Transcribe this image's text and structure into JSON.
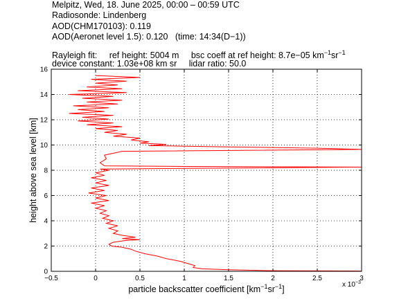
{
  "header": {
    "line1": "Melpitz, Wed, 18. June 2025, 00:00 – 00:59 UTC",
    "line2": "Radiosonde: Lindenberg",
    "line3": "AOD(CHM170103): 0.119",
    "line4": "AOD(Aeronet level 1.5): 0.120   (time: 14:34(D−1))",
    "rayleigh_label": "Rayleigh fit:",
    "ref_height": "ref height: 5004 m",
    "bsc_coeff_prefix": "bsc coeff at ref height: 8.7e−05 km",
    "bsc_coeff_unit_sup1": "−1",
    "bsc_coeff_unit_mid": "sr",
    "bsc_coeff_unit_sup2": "−1",
    "device_constant": "device constant: 1.03e+08 km sr",
    "lidar_ratio": "lidar ratio: 50.0"
  },
  "chart_data": {
    "type": "line",
    "xlabel_main": "particle backscatter coefficient [km",
    "xlabel_sup1": "−1",
    "xlabel_mid": "sr",
    "xlabel_sup2": "−1",
    "xlabel_end": "]",
    "ylabel": "height above sea level [km]",
    "x_multiplier_base": "x 10",
    "x_multiplier_exp": "−3",
    "xlim": [
      -0.5,
      3
    ],
    "ylim": [
      0,
      16
    ],
    "xticks": [
      "−0.5",
      "0",
      "0.5",
      "1",
      "1.5",
      "2",
      "2.5",
      "3"
    ],
    "yticks": [
      "0",
      "2",
      "4",
      "6",
      "8",
      "10",
      "12",
      "14",
      "16"
    ],
    "grid": true,
    "line_color": "#ff0000",
    "series": [
      {
        "points": [
          [
            3.0,
            0.02
          ],
          [
            2.0,
            0.05
          ],
          [
            1.5,
            0.12
          ],
          [
            1.2,
            0.2
          ],
          [
            1.1,
            0.3
          ],
          [
            1.12,
            0.45
          ],
          [
            1.05,
            0.6
          ],
          [
            0.95,
            0.8
          ],
          [
            0.8,
            1.0
          ],
          [
            0.7,
            1.2
          ],
          [
            0.55,
            1.4
          ],
          [
            0.45,
            1.6
          ],
          [
            0.4,
            1.75
          ],
          [
            0.3,
            1.9
          ],
          [
            0.18,
            2.0
          ],
          [
            0.15,
            2.15
          ],
          [
            0.2,
            2.3
          ],
          [
            0.35,
            2.45
          ],
          [
            0.5,
            2.5
          ],
          [
            0.3,
            2.6
          ],
          [
            0.45,
            2.7
          ],
          [
            0.3,
            2.85
          ],
          [
            0.2,
            3.0
          ],
          [
            0.25,
            3.2
          ],
          [
            0.15,
            3.4
          ],
          [
            0.25,
            3.6
          ],
          [
            0.12,
            3.8
          ],
          [
            0.2,
            4.0
          ],
          [
            0.08,
            4.2
          ],
          [
            0.15,
            4.4
          ],
          [
            0.05,
            4.6
          ],
          [
            0.12,
            4.8
          ],
          [
            0.0,
            5.0
          ],
          [
            0.1,
            5.2
          ],
          [
            -0.05,
            5.4
          ],
          [
            0.15,
            5.6
          ],
          [
            0.0,
            5.8
          ],
          [
            0.12,
            6.0
          ],
          [
            -0.08,
            6.2
          ],
          [
            0.1,
            6.4
          ],
          [
            -0.05,
            6.6
          ],
          [
            0.15,
            6.8
          ],
          [
            0.0,
            7.0
          ],
          [
            0.12,
            7.2
          ],
          [
            -0.05,
            7.4
          ],
          [
            0.1,
            7.6
          ],
          [
            0.0,
            7.8
          ],
          [
            0.15,
            8.0
          ],
          [
            0.05,
            8.1
          ],
          [
            3.0,
            8.25
          ],
          [
            1.0,
            8.3
          ],
          [
            0.1,
            8.35
          ],
          [
            0.05,
            8.6
          ],
          [
            0.12,
            8.9
          ],
          [
            0.1,
            9.2
          ],
          [
            0.3,
            9.5
          ],
          [
            3.0,
            9.65
          ],
          [
            2.5,
            9.75
          ],
          [
            1.5,
            9.85
          ],
          [
            0.6,
            9.95
          ],
          [
            0.8,
            10.05
          ],
          [
            0.5,
            10.15
          ],
          [
            0.6,
            10.25
          ],
          [
            0.4,
            10.4
          ],
          [
            0.5,
            10.55
          ],
          [
            0.2,
            10.7
          ],
          [
            0.35,
            10.85
          ],
          [
            0.1,
            11.0
          ],
          [
            0.25,
            11.15
          ],
          [
            0.0,
            11.3
          ],
          [
            0.3,
            11.45
          ],
          [
            -0.1,
            11.6
          ],
          [
            0.2,
            11.75
          ],
          [
            -0.2,
            11.9
          ],
          [
            0.15,
            12.05
          ],
          [
            -0.15,
            12.2
          ],
          [
            0.2,
            12.35
          ],
          [
            -0.3,
            12.5
          ],
          [
            0.1,
            12.65
          ],
          [
            -0.2,
            12.8
          ],
          [
            0.15,
            12.95
          ],
          [
            -0.25,
            13.1
          ],
          [
            0.25,
            13.25
          ],
          [
            -0.1,
            13.4
          ],
          [
            0.3,
            13.55
          ],
          [
            -0.15,
            13.7
          ],
          [
            0.2,
            13.85
          ],
          [
            -0.3,
            14.0
          ],
          [
            0.35,
            14.15
          ],
          [
            -0.2,
            14.3
          ],
          [
            0.3,
            14.45
          ],
          [
            -0.1,
            14.6
          ],
          [
            0.25,
            14.75
          ],
          [
            0.0,
            14.9
          ],
          [
            0.35,
            15.05
          ],
          [
            -0.05,
            15.2
          ],
          [
            0.5,
            15.35
          ],
          [
            0.0,
            15.5
          ]
        ]
      }
    ]
  }
}
